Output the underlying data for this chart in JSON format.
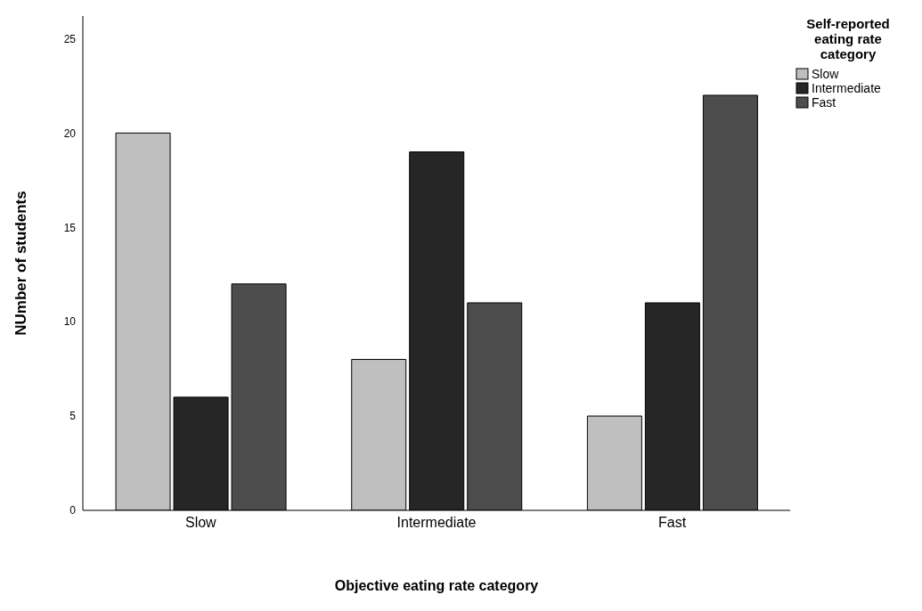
{
  "chart_data": {
    "type": "bar",
    "xlabel": "Objective eating rate category",
    "ylabel": "NUmber of students",
    "legend_title": "Self-reported eating rate category",
    "categories": [
      "Slow",
      "Intermediate",
      "Fast"
    ],
    "series": [
      {
        "name": "Slow",
        "color": "#bfbfbf",
        "values": [
          20,
          8,
          5
        ]
      },
      {
        "name": "Intermediate",
        "color": "#262626",
        "values": [
          6,
          19,
          11
        ]
      },
      {
        "name": "Fast",
        "color": "#4d4d4d",
        "values": [
          12,
          11,
          22
        ]
      }
    ],
    "ylim": [
      0,
      26.2
    ],
    "yticks": [
      0,
      5,
      10,
      15,
      20,
      25
    ],
    "grid": false,
    "legend": "top right"
  }
}
